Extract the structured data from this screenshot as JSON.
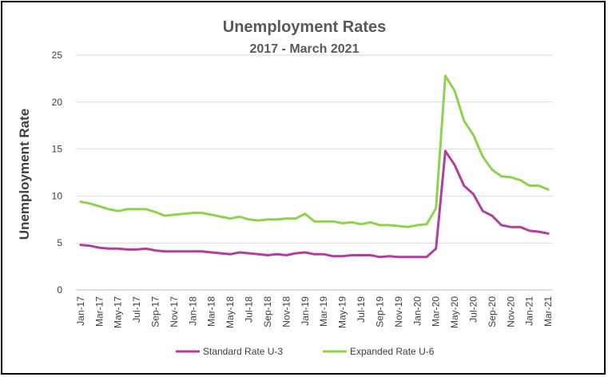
{
  "chart_data": {
    "type": "line",
    "title": "Unemployment Rates",
    "subtitle": "2017 - March 2021",
    "ylabel": "Unemployment Rate",
    "xlabel": "",
    "ylim": [
      0,
      25
    ],
    "yticks": [
      0,
      5,
      10,
      15,
      20,
      25
    ],
    "grid": true,
    "legend_position": "bottom",
    "x": [
      "Jan-17",
      "Feb-17",
      "Mar-17",
      "Apr-17",
      "May-17",
      "Jun-17",
      "Jul-17",
      "Aug-17",
      "Sep-17",
      "Oct-17",
      "Nov-17",
      "Dec-17",
      "Jan-18",
      "Feb-18",
      "Mar-18",
      "Apr-18",
      "May-18",
      "Jun-18",
      "Jul-18",
      "Aug-18",
      "Sep-18",
      "Oct-18",
      "Nov-18",
      "Dec-18",
      "Jan-19",
      "Feb-19",
      "Mar-19",
      "Apr-19",
      "May-19",
      "Jun-19",
      "Jul-19",
      "Aug-19",
      "Sep-19",
      "Oct-19",
      "Nov-19",
      "Dec-19",
      "Jan-20",
      "Feb-20",
      "Mar-20",
      "Apr-20",
      "May-20",
      "Jun-20",
      "Jul-20",
      "Aug-20",
      "Sep-20",
      "Oct-20",
      "Nov-20",
      "Dec-20",
      "Jan-21",
      "Feb-21",
      "Mar-21"
    ],
    "x_tick_labels": [
      "Jan-17",
      "Mar-17",
      "May-17",
      "Jul-17",
      "Sep-17",
      "Nov-17",
      "Jan-18",
      "Mar-18",
      "May-18",
      "Jul-18",
      "Sep-18",
      "Nov-18",
      "Jan-19",
      "Mar-19",
      "May-19",
      "Jul-19",
      "Sep-19",
      "Nov-19",
      "Jan-20",
      "Mar-20",
      "May-20",
      "Jul-20",
      "Sep-20",
      "Nov-20",
      "Jan-21",
      "Mar-21"
    ],
    "series": [
      {
        "name": "Standard Rate U-3",
        "color": "#b13f9c",
        "values": [
          4.8,
          4.7,
          4.5,
          4.4,
          4.4,
          4.3,
          4.3,
          4.4,
          4.2,
          4.1,
          4.1,
          4.1,
          4.1,
          4.1,
          4.0,
          3.9,
          3.8,
          4.0,
          3.9,
          3.8,
          3.7,
          3.8,
          3.7,
          3.9,
          4.0,
          3.8,
          3.8,
          3.6,
          3.6,
          3.7,
          3.7,
          3.7,
          3.5,
          3.6,
          3.5,
          3.5,
          3.5,
          3.5,
          4.4,
          14.8,
          13.3,
          11.1,
          10.2,
          8.4,
          7.9,
          6.9,
          6.7,
          6.7,
          6.3,
          6.2,
          6.0
        ]
      },
      {
        "name": "Expanded Rate U-6",
        "color": "#92d050",
        "values": [
          9.4,
          9.2,
          8.9,
          8.6,
          8.4,
          8.6,
          8.6,
          8.6,
          8.3,
          7.9,
          8.0,
          8.1,
          8.2,
          8.2,
          8.0,
          7.8,
          7.6,
          7.8,
          7.5,
          7.4,
          7.5,
          7.5,
          7.6,
          7.6,
          8.1,
          7.3,
          7.3,
          7.3,
          7.1,
          7.2,
          7.0,
          7.2,
          6.9,
          6.9,
          6.8,
          6.7,
          6.9,
          7.0,
          8.7,
          22.8,
          21.2,
          18.0,
          16.5,
          14.2,
          12.8,
          12.1,
          12.0,
          11.7,
          11.1,
          11.1,
          10.7
        ]
      }
    ]
  }
}
